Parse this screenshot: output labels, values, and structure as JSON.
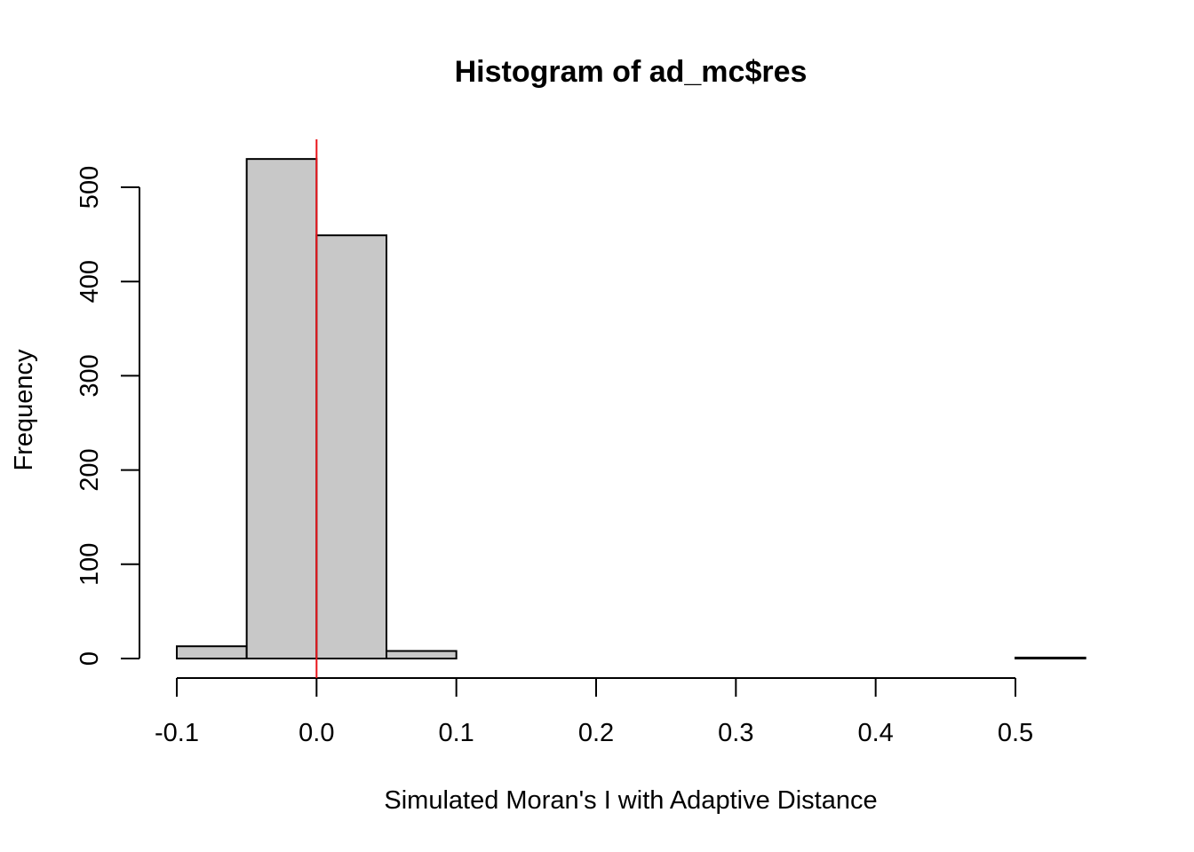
{
  "chart_data": {
    "type": "bar",
    "title": "Histogram of ad_mc$res",
    "xlabel": "Simulated Moran's I with Adaptive Distance",
    "ylabel": "Frequency",
    "bin_edges": [
      -0.1,
      -0.05,
      0.0,
      0.05,
      0.1,
      0.15,
      0.2,
      0.25,
      0.3,
      0.35,
      0.4,
      0.45,
      0.5,
      0.55
    ],
    "values": [
      13,
      530,
      449,
      8,
      0,
      0,
      0,
      0,
      0,
      0,
      0,
      0,
      1
    ],
    "xlim": [
      -0.1,
      0.55
    ],
    "ylim": [
      0,
      530
    ],
    "x_ticks": [
      -0.1,
      0.0,
      0.1,
      0.2,
      0.3,
      0.4,
      0.5
    ],
    "x_tick_labels": [
      "-0.1",
      "0.0",
      "0.1",
      "0.2",
      "0.3",
      "0.4",
      "0.5"
    ],
    "y_ticks": [
      0,
      100,
      200,
      300,
      400,
      500
    ],
    "y_tick_labels": [
      "0",
      "100",
      "200",
      "300",
      "400",
      "500"
    ],
    "reference_line_x": 0.0,
    "bar_color": "#c8c8c8",
    "reference_line_color": "#e8141a",
    "grid": false,
    "legend": "none"
  }
}
